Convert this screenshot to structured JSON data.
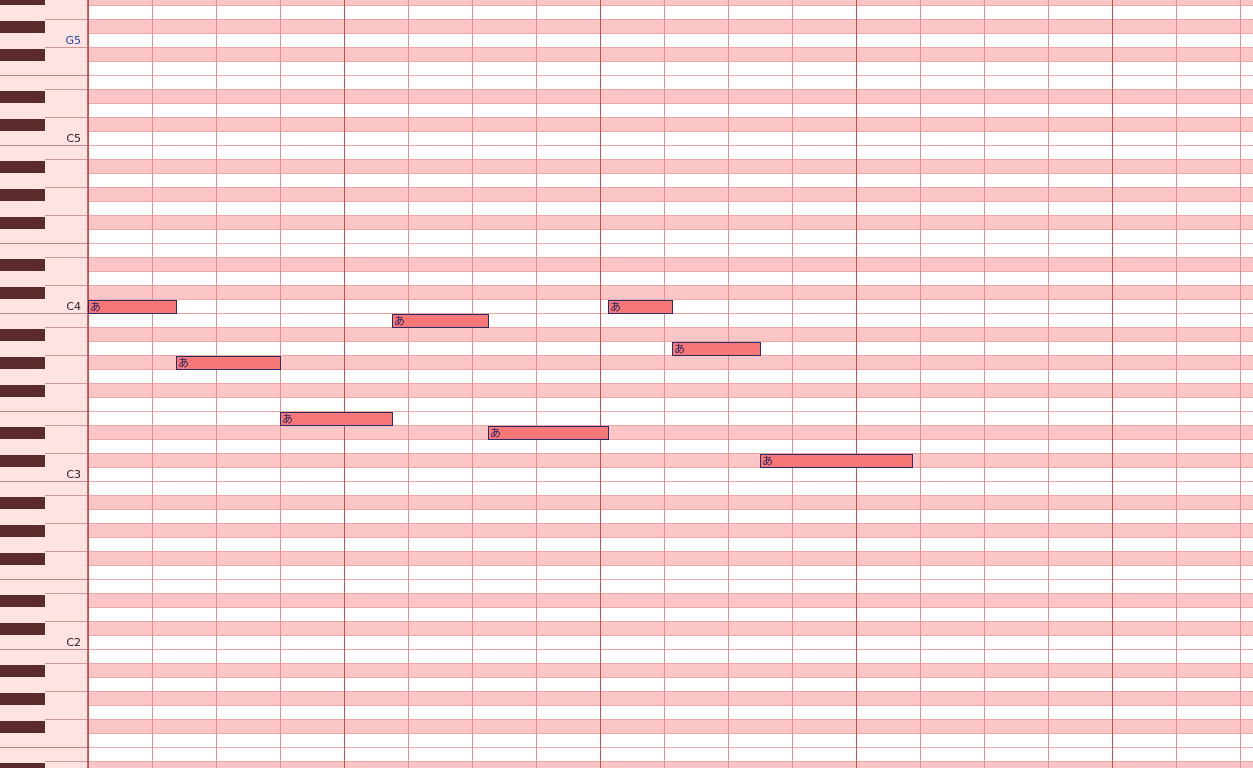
{
  "piano_labels": [
    "G5",
    "C5",
    "C4",
    "C3",
    "C2"
  ],
  "notes": [
    {
      "lyric": "あ"
    },
    {
      "lyric": "あ"
    },
    {
      "lyric": "あ"
    },
    {
      "lyric": "あ"
    },
    {
      "lyric": "あ"
    },
    {
      "lyric": "あ"
    },
    {
      "lyric": "あ"
    },
    {
      "lyric": "あ"
    }
  ]
}
